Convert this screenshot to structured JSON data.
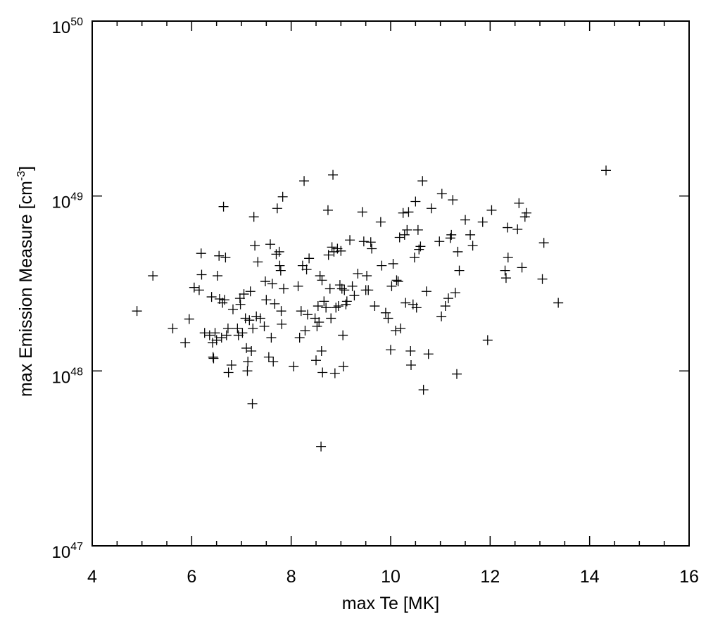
{
  "chart_data": {
    "type": "scatter",
    "marker": "plus",
    "xlabel": "max Te [MK]",
    "ylabel_main": "max Emission Measure [cm",
    "ylabel_sup": "-3",
    "ylabel_close": "]",
    "x_scale": "linear",
    "y_scale": "log",
    "xlim": [
      4,
      16
    ],
    "ylim": [
      1e+47,
      1e+50
    ],
    "x_ticks": [
      4,
      6,
      8,
      10,
      12,
      14,
      16
    ],
    "x_tick_labels": [
      "4",
      "6",
      "8",
      "10",
      "12",
      "14",
      "16"
    ],
    "y_ticks": [
      {
        "value": 1e+47,
        "base": "10",
        "exp": "47"
      },
      {
        "value": 1e+48,
        "base": "10",
        "exp": "48"
      },
      {
        "value": 1e+49,
        "base": "10",
        "exp": "49"
      },
      {
        "value": 1e+50,
        "base": "10",
        "exp": "50"
      }
    ],
    "grid": false,
    "legend": "none",
    "marker_color": "#000000",
    "points": [
      [
        4.9,
        2.2e+48
      ],
      [
        5.22,
        3.5e+48
      ],
      [
        5.62,
        1.75e+48
      ],
      [
        5.87,
        1.45e+48
      ],
      [
        5.95,
        1.98e+48
      ],
      [
        6.05,
        3e+48
      ],
      [
        6.15,
        2.9e+48
      ],
      [
        6.19,
        4.7e+48
      ],
      [
        6.2,
        3.55e+48
      ],
      [
        6.26,
        1.65e+48
      ],
      [
        6.36,
        1.6e+48
      ],
      [
        6.4,
        2.65e+48
      ],
      [
        6.42,
        1.45e+48
      ],
      [
        6.43,
        1.2e+48
      ],
      [
        6.44,
        1.18e+48
      ],
      [
        6.47,
        1.65e+48
      ],
      [
        6.5,
        1.5e+48
      ],
      [
        6.52,
        3.5e+48
      ],
      [
        6.55,
        4.55e+48
      ],
      [
        6.56,
        2.58e+48
      ],
      [
        6.6,
        1.55e+48
      ],
      [
        6.62,
        2.45e+48
      ],
      [
        6.64,
        8.7e+48
      ],
      [
        6.66,
        2.55e+48
      ],
      [
        6.68,
        4.45e+48
      ],
      [
        6.7,
        1.6e+48
      ],
      [
        6.73,
        1.75e+48
      ],
      [
        6.74,
        9.8e+47
      ],
      [
        6.8,
        1.08e+48
      ],
      [
        6.83,
        2.25e+48
      ],
      [
        6.92,
        1.75e+48
      ],
      [
        6.94,
        1.6e+48
      ],
      [
        6.97,
        2.6e+48
      ],
      [
        6.98,
        2.4e+48
      ],
      [
        7.02,
        1.65e+48
      ],
      [
        7.05,
        2.75e+48
      ],
      [
        7.08,
        2e+48
      ],
      [
        7.1,
        1.35e+48
      ],
      [
        7.12,
        1e+48
      ],
      [
        7.13,
        1.13e+48
      ],
      [
        7.16,
        1.95e+48
      ],
      [
        7.18,
        2.85e+48
      ],
      [
        7.2,
        1.3e+48
      ],
      [
        7.22,
        6.5e+47
      ],
      [
        7.23,
        1.75e+48
      ],
      [
        7.25,
        7.6e+48
      ],
      [
        7.27,
        5.2e+48
      ],
      [
        7.3,
        2.05e+48
      ],
      [
        7.33,
        4.2e+48
      ],
      [
        7.38,
        2e+48
      ],
      [
        7.46,
        1.8e+48
      ],
      [
        7.48,
        3.25e+48
      ],
      [
        7.5,
        2.55e+48
      ],
      [
        7.55,
        1.2e+48
      ],
      [
        7.58,
        5.3e+48
      ],
      [
        7.6,
        1.55e+48
      ],
      [
        7.62,
        3.15e+48
      ],
      [
        7.64,
        1.13e+48
      ],
      [
        7.67,
        2.42e+48
      ],
      [
        7.7,
        4.65e+48
      ],
      [
        7.72,
        8.5e+48
      ],
      [
        7.76,
        4.8e+48
      ],
      [
        7.77,
        4e+48
      ],
      [
        7.79,
        3.75e+48
      ],
      [
        7.8,
        2.2e+48
      ],
      [
        7.81,
        1.85e+48
      ],
      [
        7.83,
        9.9e+48
      ],
      [
        7.85,
        2.95e+48
      ],
      [
        8.05,
        1.06e+48
      ],
      [
        8.14,
        3.05e+48
      ],
      [
        8.17,
        1.55e+48
      ],
      [
        8.2,
        2.2e+48
      ],
      [
        8.23,
        4e+48
      ],
      [
        8.26,
        1.22e+49
      ],
      [
        8.28,
        1.7e+48
      ],
      [
        8.31,
        3.8e+48
      ],
      [
        8.33,
        2.1e+48
      ],
      [
        8.36,
        4.4e+48
      ],
      [
        8.48,
        2e+48
      ],
      [
        8.5,
        1.15e+48
      ],
      [
        8.52,
        1.8e+48
      ],
      [
        8.54,
        2.35e+48
      ],
      [
        8.56,
        1.9e+48
      ],
      [
        8.58,
        3.5e+48
      ],
      [
        8.6,
        3.7e+47
      ],
      [
        8.61,
        1.3e+48
      ],
      [
        8.62,
        3.3e+48
      ],
      [
        8.63,
        9.8e+47
      ],
      [
        8.66,
        2.5e+48
      ],
      [
        8.7,
        2.3e+48
      ],
      [
        8.74,
        8.3e+48
      ],
      [
        8.75,
        4.6e+48
      ],
      [
        8.78,
        2.95e+48
      ],
      [
        8.8,
        2e+48
      ],
      [
        8.82,
        5.1e+48
      ],
      [
        8.84,
        1.32e+49
      ],
      [
        8.86,
        4.8e+48
      ],
      [
        8.88,
        9.7e+47
      ],
      [
        8.9,
        2.3e+48
      ],
      [
        8.93,
        5e+48
      ],
      [
        8.95,
        2.35e+48
      ],
      [
        8.98,
        3.1e+48
      ],
      [
        9.0,
        4.85e+48
      ],
      [
        9.02,
        2.95e+48
      ],
      [
        9.04,
        1.6e+48
      ],
      [
        9.05,
        1.06e+48
      ],
      [
        9.07,
        2.9e+48
      ],
      [
        9.1,
        2.4e+48
      ],
      [
        9.12,
        2.5e+48
      ],
      [
        9.18,
        5.6e+48
      ],
      [
        9.23,
        3.05e+48
      ],
      [
        9.27,
        2.7e+48
      ],
      [
        9.34,
        3.6e+48
      ],
      [
        9.43,
        8.1e+48
      ],
      [
        9.46,
        5.5e+48
      ],
      [
        9.5,
        2.9e+48
      ],
      [
        9.52,
        3.5e+48
      ],
      [
        9.55,
        2.9e+48
      ],
      [
        9.6,
        5.45e+48
      ],
      [
        9.62,
        5e+48
      ],
      [
        9.68,
        2.35e+48
      ],
      [
        9.8,
        7.1e+48
      ],
      [
        9.82,
        4e+48
      ],
      [
        9.9,
        2.15e+48
      ],
      [
        9.95,
        2e+48
      ],
      [
        10.0,
        1.32e+48
      ],
      [
        10.02,
        3.05e+48
      ],
      [
        10.05,
        4.1e+48
      ],
      [
        10.1,
        1.7e+48
      ],
      [
        10.12,
        3.3e+48
      ],
      [
        10.15,
        3.25e+48
      ],
      [
        10.18,
        5.8e+48
      ],
      [
        10.2,
        1.75e+48
      ],
      [
        10.25,
        8e+48
      ],
      [
        10.28,
        6e+48
      ],
      [
        10.3,
        2.45e+48
      ],
      [
        10.33,
        6.4e+48
      ],
      [
        10.36,
        8.1e+48
      ],
      [
        10.4,
        1.3e+48
      ],
      [
        10.41,
        1.08e+48
      ],
      [
        10.45,
        2.4e+48
      ],
      [
        10.48,
        4.45e+48
      ],
      [
        10.5,
        9.3e+48
      ],
      [
        10.52,
        2.3e+48
      ],
      [
        10.55,
        6.4e+48
      ],
      [
        10.57,
        4.95e+48
      ],
      [
        10.6,
        5.15e+48
      ],
      [
        10.64,
        1.22e+49
      ],
      [
        10.66,
        7.8e+47
      ],
      [
        10.72,
        2.85e+48
      ],
      [
        10.76,
        1.25e+48
      ],
      [
        10.82,
        8.5e+48
      ],
      [
        10.98,
        5.5e+48
      ],
      [
        11.02,
        2.05e+48
      ],
      [
        11.03,
        1.03e+49
      ],
      [
        11.1,
        2.35e+48
      ],
      [
        11.16,
        2.6e+48
      ],
      [
        11.2,
        5.75e+48
      ],
      [
        11.22,
        6e+48
      ],
      [
        11.25,
        9.5e+48
      ],
      [
        11.3,
        2.8e+48
      ],
      [
        11.33,
        9.6e+47
      ],
      [
        11.35,
        4.8e+48
      ],
      [
        11.38,
        3.75e+48
      ],
      [
        11.5,
        7.3e+48
      ],
      [
        11.6,
        6e+48
      ],
      [
        11.65,
        5.2e+48
      ],
      [
        11.85,
        7.1e+48
      ],
      [
        11.95,
        1.5e+48
      ],
      [
        12.03,
        8.3e+48
      ],
      [
        12.3,
        3.75e+48
      ],
      [
        12.32,
        3.4e+48
      ],
      [
        12.35,
        6.6e+48
      ],
      [
        12.36,
        4.45e+48
      ],
      [
        12.55,
        6.45e+48
      ],
      [
        12.58,
        9.1e+48
      ],
      [
        12.64,
        3.9e+48
      ],
      [
        12.7,
        7.6e+48
      ],
      [
        12.73,
        8e+48
      ],
      [
        13.05,
        3.35e+48
      ],
      [
        13.08,
        5.4e+48
      ],
      [
        13.37,
        2.45e+48
      ],
      [
        14.33,
        1.4e+49
      ]
    ]
  }
}
